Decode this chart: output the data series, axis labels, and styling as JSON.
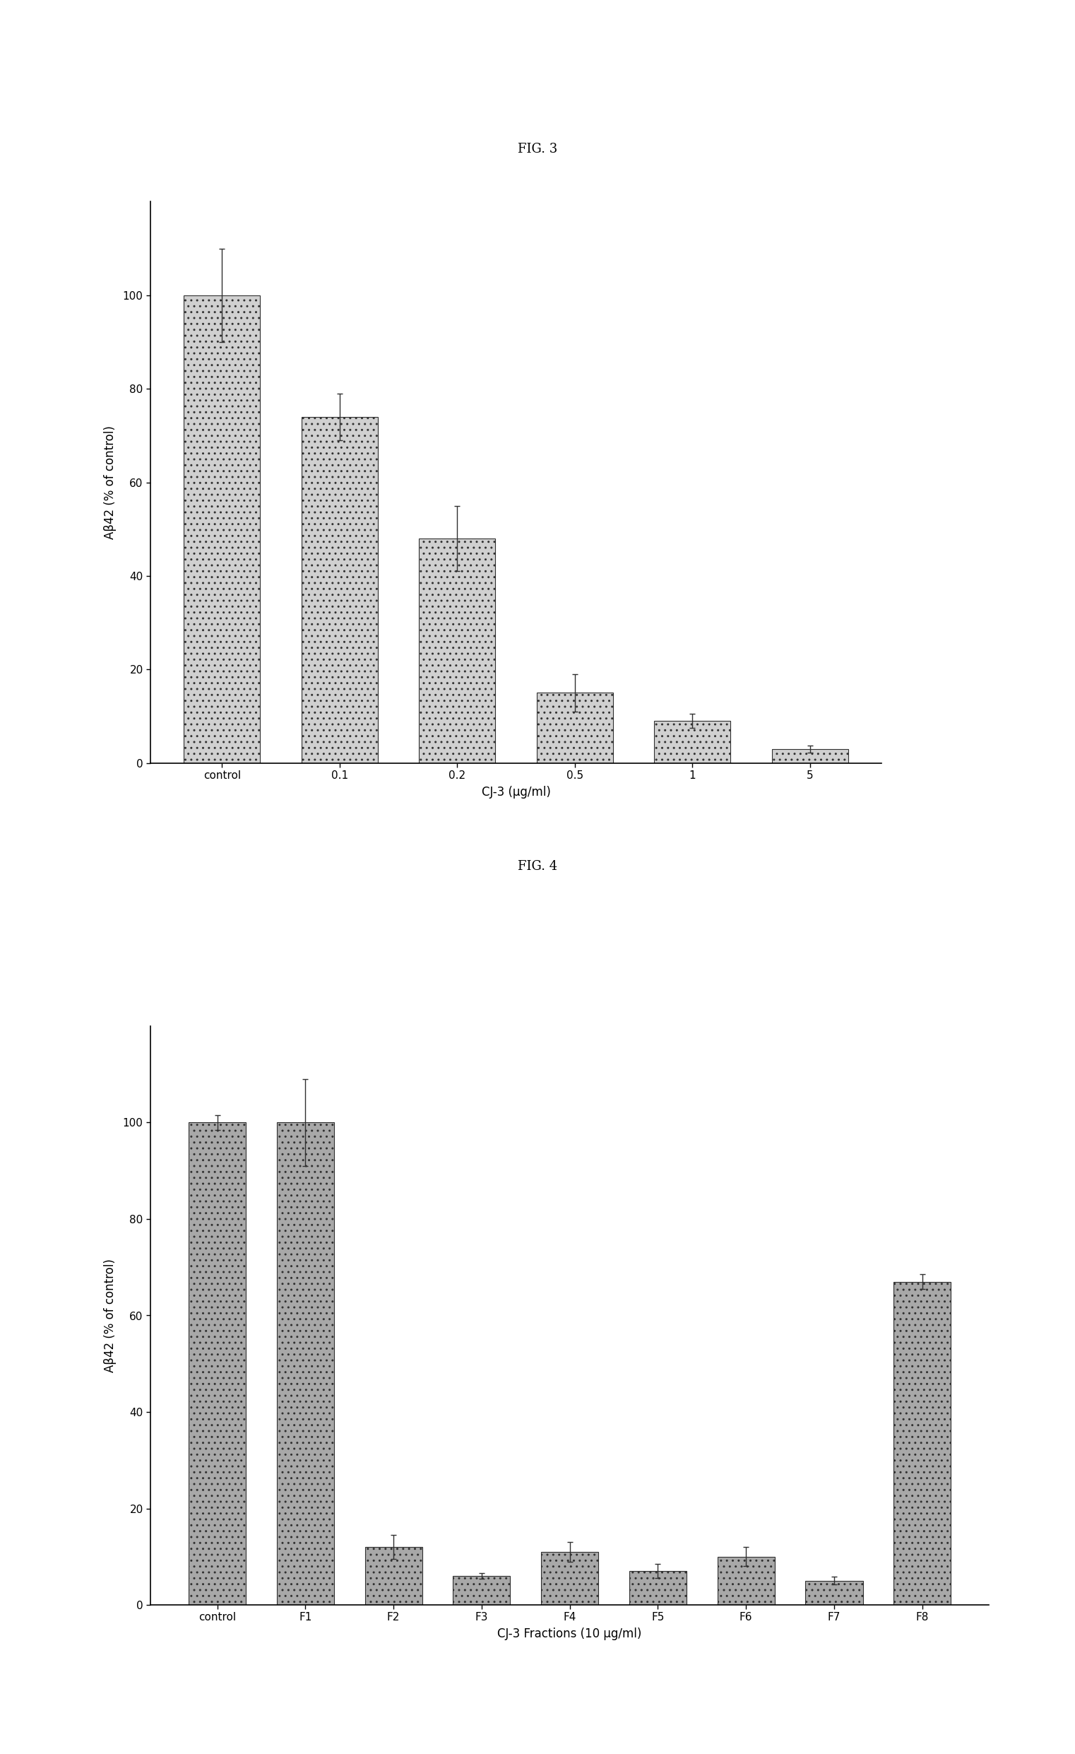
{
  "fig3": {
    "title": "FIG. 3",
    "categories": [
      "control",
      "0.1",
      "0.2",
      "0.5",
      "1",
      "5"
    ],
    "values": [
      100,
      74,
      48,
      15,
      9,
      3
    ],
    "errors": [
      10,
      5,
      7,
      4,
      1.5,
      0.8
    ],
    "xlabel": "CJ-3 (μg/ml)",
    "ylabel": "Aβ42 (% of control)",
    "ylim": [
      0,
      120
    ],
    "yticks": [
      0,
      20,
      40,
      60,
      80,
      100
    ],
    "bar_color": "#d0d0d0",
    "bar_edge_color": "#303030",
    "bar_width": 0.65,
    "hatch": ".."
  },
  "fig4": {
    "title": "FIG. 4",
    "categories": [
      "control",
      "F1",
      "F2",
      "F3",
      "F4",
      "F5",
      "F6",
      "F7",
      "F8"
    ],
    "values": [
      100,
      100,
      12,
      6,
      11,
      7,
      10,
      5,
      67
    ],
    "errors": [
      1.5,
      9,
      2.5,
      0.6,
      2,
      1.5,
      2,
      0.8,
      1.5
    ],
    "xlabel": "CJ-3 Fractions (10 μg/ml)",
    "ylabel": "Aβ42 (% of control)",
    "ylim": [
      0,
      120
    ],
    "yticks": [
      0,
      20,
      40,
      60,
      80,
      100
    ],
    "bar_color": "#a8a8a8",
    "bar_edge_color": "#303030",
    "bar_width": 0.65,
    "hatch": ".."
  },
  "bg_color": "#ffffff",
  "title_fontsize": 13,
  "label_fontsize": 12,
  "tick_fontsize": 11
}
